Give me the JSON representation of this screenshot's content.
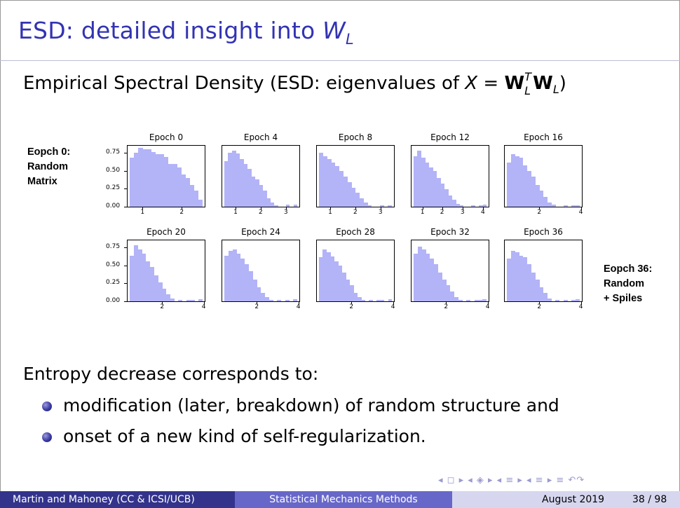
{
  "title": {
    "main": "ESD: detailed insight into ",
    "var": "W",
    "sub": "L"
  },
  "subtitle": {
    "prefix": "Empirical Spectral Density (ESD: eigenvalues of ",
    "x": "X",
    "eq": " = ",
    "w1": "W",
    "sup": "T",
    "sub": "L",
    "w2": "W",
    "sub2": "L",
    "suffix": ")"
  },
  "left_label": [
    "Eopch 0:",
    "Random",
    "Matrix"
  ],
  "right_label": [
    "Eopch 36:",
    "Random",
    "+ Spiles"
  ],
  "chart_data": {
    "type": "bar",
    "yticks_row": [
      "0.00",
      "0.25",
      "0.50",
      "0.75"
    ],
    "panels": [
      {
        "title": "Epoch 0",
        "xticks": [
          "1",
          "2"
        ],
        "values": [
          0.68,
          0.75,
          0.82,
          0.8,
          0.8,
          0.76,
          0.73,
          0.73,
          0.69,
          0.6,
          0.6,
          0.55,
          0.45,
          0.4,
          0.3,
          0.22,
          0.1
        ]
      },
      {
        "title": "Epoch 4",
        "xticks": [
          "1",
          "2",
          "3"
        ],
        "values": [
          0.64,
          0.75,
          0.78,
          0.74,
          0.66,
          0.6,
          0.53,
          0.42,
          0.38,
          0.3,
          0.22,
          0.12,
          0.06,
          0.02,
          0.0,
          0.0,
          0.03,
          0.0,
          0.03
        ]
      },
      {
        "title": "Epoch 8",
        "xticks": [
          "1",
          "2",
          "3"
        ],
        "values": [
          0.75,
          0.7,
          0.66,
          0.62,
          0.57,
          0.5,
          0.42,
          0.34,
          0.26,
          0.2,
          0.12,
          0.06,
          0.02,
          0.0,
          0.0,
          0.02,
          0.0,
          0.02
        ]
      },
      {
        "title": "Epoch 12",
        "xticks": [
          "1",
          "2",
          "3",
          "4"
        ],
        "values": [
          0.7,
          0.78,
          0.68,
          0.62,
          0.55,
          0.5,
          0.4,
          0.32,
          0.24,
          0.16,
          0.1,
          0.04,
          0.02,
          0.0,
          0.0,
          0.02,
          0.0,
          0.02,
          0.03
        ]
      },
      {
        "title": "Epoch 16",
        "xticks": [
          "2",
          "4"
        ],
        "values": [
          0.62,
          0.73,
          0.7,
          0.68,
          0.58,
          0.5,
          0.42,
          0.3,
          0.22,
          0.14,
          0.06,
          0.03,
          0.0,
          0.0,
          0.02,
          0.0,
          0.02,
          0.02
        ]
      },
      {
        "title": "Epoch 20",
        "xticks": [
          "2",
          "4"
        ],
        "values": [
          0.64,
          0.78,
          0.72,
          0.66,
          0.56,
          0.48,
          0.36,
          0.26,
          0.18,
          0.1,
          0.04,
          0.0,
          0.02,
          0.0,
          0.02,
          0.02,
          0.0,
          0.03
        ]
      },
      {
        "title": "Epoch 24",
        "xticks": [
          "2",
          "4"
        ],
        "values": [
          0.64,
          0.7,
          0.72,
          0.66,
          0.6,
          0.52,
          0.42,
          0.3,
          0.2,
          0.12,
          0.06,
          0.02,
          0.0,
          0.02,
          0.0,
          0.02,
          0.0,
          0.03
        ]
      },
      {
        "title": "Epoch 28",
        "xticks": [
          "2",
          "4"
        ],
        "values": [
          0.62,
          0.72,
          0.68,
          0.63,
          0.56,
          0.5,
          0.4,
          0.3,
          0.22,
          0.12,
          0.06,
          0.02,
          0.0,
          0.02,
          0.0,
          0.02,
          0.02,
          0.0,
          0.03
        ]
      },
      {
        "title": "Epoch 32",
        "xticks": [
          "2",
          "4"
        ],
        "values": [
          0.66,
          0.76,
          0.72,
          0.66,
          0.6,
          0.52,
          0.4,
          0.3,
          0.22,
          0.14,
          0.06,
          0.02,
          0.0,
          0.02,
          0.0,
          0.02,
          0.02,
          0.03
        ]
      },
      {
        "title": "Epoch 36",
        "xticks": [
          "2",
          "4"
        ],
        "values": [
          0.6,
          0.7,
          0.68,
          0.64,
          0.62,
          0.52,
          0.4,
          0.3,
          0.2,
          0.12,
          0.04,
          0.0,
          0.02,
          0.0,
          0.02,
          0.0,
          0.02,
          0.03
        ]
      }
    ]
  },
  "body": {
    "intro": "Entropy decrease corresponds to:",
    "bullets": [
      "modification (later, breakdown) of random structure and",
      "onset of a new kind of self-regularization."
    ]
  },
  "nav_symbols": "◂ ◻ ▸ ◂ ◈ ▸ ◂ ≡ ▸ ◂ ≡ ▸   ≡   ↶↷",
  "footer": {
    "authors": "Martin and Mahoney  (CC & ICSI/UCB)",
    "talk": "Statistical Mechanics Methods",
    "date": "August 2019",
    "page": "38 / 98"
  }
}
